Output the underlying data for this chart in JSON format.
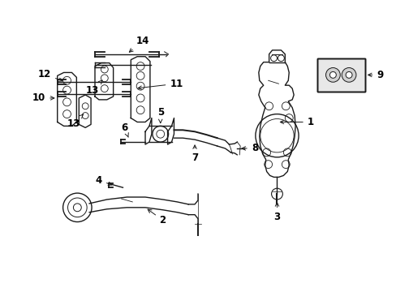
{
  "background_color": "#ffffff",
  "fig_width": 4.89,
  "fig_height": 3.6,
  "dpi": 100,
  "line_color": "#1a1a1a",
  "label_color": "#000000",
  "label_fontsize": 8.5
}
